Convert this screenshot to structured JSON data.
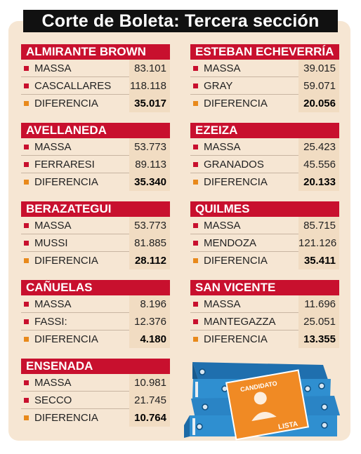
{
  "title": "Corte de Boleta: Tercera sección",
  "sections": [
    {
      "name": "ALMIRANTE BROWN",
      "rows": [
        {
          "label": "MASSA",
          "value": "83.101"
        },
        {
          "label": "CASCALLARES",
          "value": "118.118"
        },
        {
          "label": "DIFERENCIA",
          "value": "35.017"
        }
      ]
    },
    {
      "name": "AVELLANEDA",
      "rows": [
        {
          "label": "MASSA",
          "value": "53.773"
        },
        {
          "label": "FERRARESI",
          "value": "89.113"
        },
        {
          "label": "DIFERENCIA",
          "value": "35.340"
        }
      ]
    },
    {
      "name": "BERAZATEGUI",
      "rows": [
        {
          "label": "MASSA",
          "value": "53.773"
        },
        {
          "label": "MUSSI",
          "value": "81.885"
        },
        {
          "label": "DIFERENCIA",
          "value": "28.112"
        }
      ]
    },
    {
      "name": "CAÑUELAS",
      "rows": [
        {
          "label": "MASSA",
          "value": "8.196"
        },
        {
          "label": "FASSI:",
          "value": "12.376"
        },
        {
          "label": "DIFERENCIA",
          "value": "4.180"
        }
      ]
    },
    {
      "name": "ENSENADA",
      "rows": [
        {
          "label": "MASSA",
          "value": "10.981"
        },
        {
          "label": "SECCO",
          "value": "21.745"
        },
        {
          "label": "DIFERENCIA",
          "value": "10.764"
        }
      ]
    },
    {
      "name": "ESTEBAN ECHEVERRÍA",
      "rows": [
        {
          "label": "MASSA",
          "value": "39.015"
        },
        {
          "label": "GRAY",
          "value": "59.071"
        },
        {
          "label": "DIFERENCIA",
          "value": "20.056"
        }
      ]
    },
    {
      "name": "EZEIZA",
      "rows": [
        {
          "label": "MASSA",
          "value": "25.423"
        },
        {
          "label": "GRANADOS",
          "value": "45.556"
        },
        {
          "label": "DIFERENCIA",
          "value": "20.133"
        }
      ]
    },
    {
      "name": "QUILMES",
      "rows": [
        {
          "label": "MASSA",
          "value": "85.715"
        },
        {
          "label": "MENDOZA",
          "value": "121.126"
        },
        {
          "label": "DIFERENCIA",
          "value": "35.411"
        }
      ]
    },
    {
      "name": "SAN VICENTE",
      "rows": [
        {
          "label": "MASSA",
          "value": "11.696"
        },
        {
          "label": "MANTEGAZZA",
          "value": "25.051"
        },
        {
          "label": "DIFERENCIA",
          "value": "13.355"
        }
      ]
    }
  ],
  "illustration": {
    "sheet_label": "CANDIDATO",
    "stamp_label": "LISTA"
  },
  "colors": {
    "header": "#c8102e",
    "bullet_candidate": "#c8102e",
    "bullet_difference": "#e8891b",
    "panel": "#f6e6d3",
    "folder": "#2f8fd0"
  }
}
